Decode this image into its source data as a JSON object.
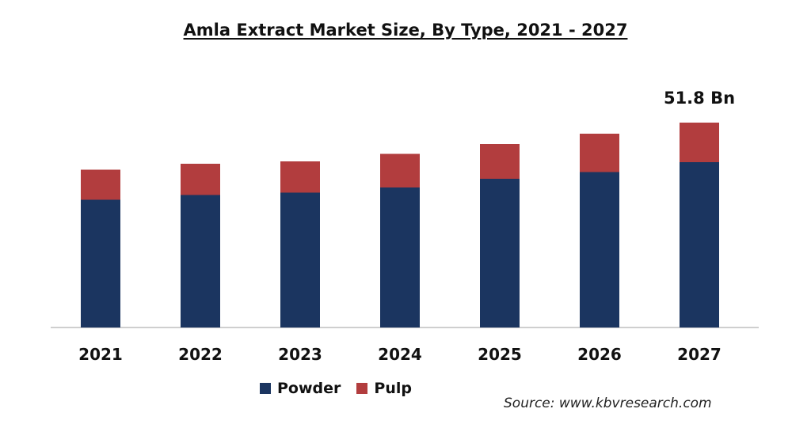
{
  "colors": {
    "powder": "#1b3560",
    "pulp": "#b23d3e",
    "axis": "#bfbfbf"
  },
  "legend": {
    "powder_label": "Powder",
    "pulp_label": "Pulp"
  },
  "source": "Source: www.kbvresearch.com",
  "chart_data": {
    "type": "bar",
    "stacked": true,
    "title": "Amla Extract Market Size, By Type, 2021 - 2027",
    "xlabel": "",
    "ylabel": "",
    "categories": [
      "2021",
      "2022",
      "2023",
      "2024",
      "2025",
      "2026",
      "2027"
    ],
    "series": [
      {
        "name": "Powder",
        "values": [
          32.3,
          33.5,
          34.1,
          35.4,
          37.6,
          39.3,
          41.8
        ]
      },
      {
        "name": "Pulp",
        "values": [
          7.6,
          7.9,
          7.9,
          8.5,
          8.8,
          9.7,
          10.0
        ]
      }
    ],
    "ylim": [
      0,
      52
    ],
    "annotations": [
      {
        "category": "2027",
        "text": "51.8 Bn"
      }
    ],
    "legend_position": "bottom",
    "grid": false
  }
}
